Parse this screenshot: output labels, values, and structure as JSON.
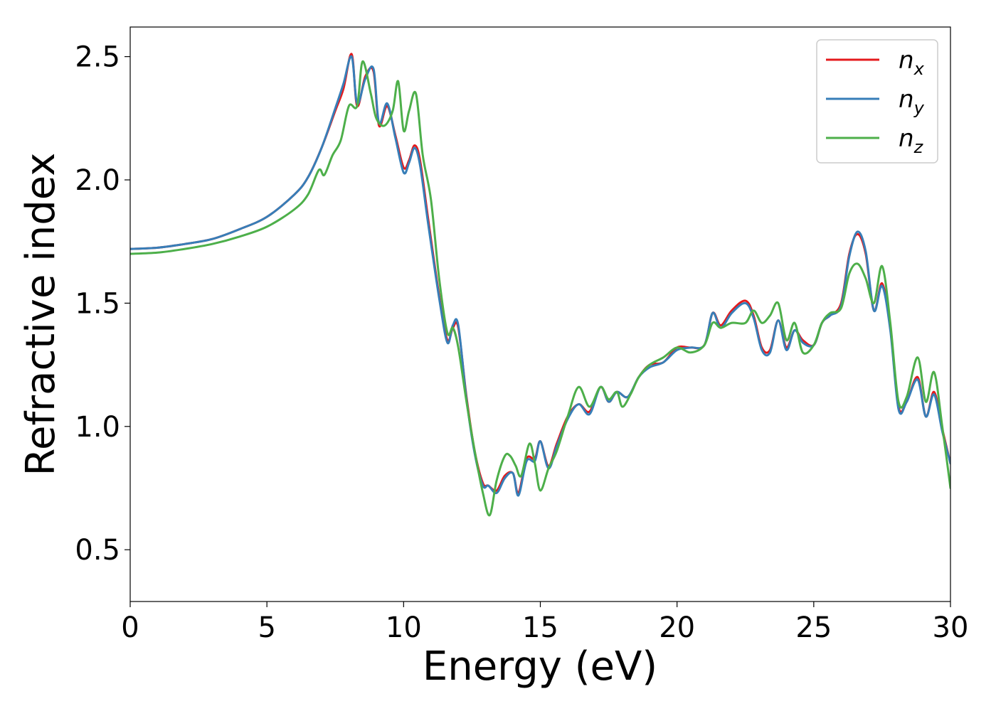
{
  "chart_data": {
    "type": "line",
    "xlabel": "Energy (eV)",
    "ylabel": "Refractive index",
    "xlim": [
      0,
      30
    ],
    "ylim": [
      0.29,
      2.62
    ],
    "xticks": [
      "0",
      "5",
      "10",
      "15",
      "20",
      "25",
      "30"
    ],
    "yticks": [
      "0.5",
      "1.0",
      "1.5",
      "2.0",
      "2.5"
    ],
    "grid": false,
    "legend_position": "top-right",
    "series": [
      {
        "name": "n",
        "subscript": "x",
        "color": "#e41a1c",
        "x": [
          0,
          1,
          2,
          3,
          4,
          5,
          6,
          6.5,
          7,
          7.5,
          7.8,
          8.1,
          8.3,
          8.6,
          8.9,
          9.1,
          9.4,
          9.7,
          10.0,
          10.2,
          10.4,
          10.6,
          10.9,
          11.3,
          11.6,
          11.8,
          12.0,
          12.3,
          12.6,
          12.9,
          13.1,
          13.4,
          13.7,
          14.0,
          14.2,
          14.5,
          14.8,
          15.0,
          15.3,
          15.6,
          16.0,
          16.4,
          16.8,
          17.2,
          17.5,
          17.8,
          18.2,
          18.6,
          19.0,
          19.5,
          20.0,
          20.5,
          21.0,
          21.3,
          21.6,
          22.0,
          22.5,
          22.8,
          23.1,
          23.4,
          23.7,
          24.0,
          24.3,
          24.6,
          25.0,
          25.3,
          25.6,
          26.0,
          26.3,
          26.6,
          26.9,
          27.2,
          27.5,
          27.8,
          28.1,
          28.4,
          28.8,
          29.1,
          29.4,
          29.7,
          30.0
        ],
        "values": [
          1.72,
          1.725,
          1.74,
          1.76,
          1.8,
          1.85,
          1.94,
          2.01,
          2.13,
          2.28,
          2.37,
          2.51,
          2.3,
          2.42,
          2.44,
          2.22,
          2.3,
          2.18,
          2.05,
          2.08,
          2.14,
          2.08,
          1.84,
          1.53,
          1.35,
          1.4,
          1.4,
          1.12,
          0.9,
          0.77,
          0.76,
          0.74,
          0.8,
          0.81,
          0.73,
          0.87,
          0.87,
          0.94,
          0.84,
          0.93,
          1.04,
          1.09,
          1.06,
          1.16,
          1.1,
          1.14,
          1.12,
          1.2,
          1.25,
          1.26,
          1.32,
          1.32,
          1.33,
          1.46,
          1.41,
          1.47,
          1.51,
          1.45,
          1.32,
          1.31,
          1.43,
          1.32,
          1.39,
          1.35,
          1.33,
          1.42,
          1.45,
          1.5,
          1.7,
          1.78,
          1.7,
          1.47,
          1.58,
          1.4,
          1.08,
          1.1,
          1.2,
          1.04,
          1.14,
          0.99,
          0.85
        ]
      },
      {
        "name": "n",
        "subscript": "y",
        "color": "#377eb8",
        "x": [
          0,
          1,
          2,
          3,
          4,
          5,
          6,
          6.5,
          7,
          7.5,
          7.8,
          8.1,
          8.3,
          8.6,
          8.9,
          9.1,
          9.4,
          9.7,
          10.0,
          10.2,
          10.4,
          10.6,
          10.9,
          11.3,
          11.6,
          11.8,
          12.0,
          12.3,
          12.6,
          12.9,
          13.1,
          13.4,
          13.7,
          14.0,
          14.2,
          14.5,
          14.8,
          15.0,
          15.3,
          15.6,
          16.0,
          16.4,
          16.8,
          17.2,
          17.5,
          17.8,
          18.2,
          18.6,
          19.0,
          19.5,
          20.0,
          20.5,
          21.0,
          21.3,
          21.6,
          22.0,
          22.5,
          22.8,
          23.1,
          23.4,
          23.7,
          24.0,
          24.3,
          24.6,
          25.0,
          25.3,
          25.6,
          26.0,
          26.3,
          26.6,
          26.9,
          27.2,
          27.5,
          27.8,
          28.1,
          28.4,
          28.8,
          29.1,
          29.4,
          29.7,
          30.0
        ],
        "values": [
          1.72,
          1.725,
          1.74,
          1.76,
          1.8,
          1.85,
          1.94,
          2.01,
          2.13,
          2.29,
          2.39,
          2.5,
          2.31,
          2.41,
          2.45,
          2.23,
          2.31,
          2.17,
          2.03,
          2.07,
          2.13,
          2.06,
          1.82,
          1.52,
          1.34,
          1.41,
          1.41,
          1.11,
          0.89,
          0.76,
          0.76,
          0.73,
          0.79,
          0.81,
          0.72,
          0.86,
          0.86,
          0.94,
          0.83,
          0.92,
          1.03,
          1.09,
          1.05,
          1.16,
          1.1,
          1.14,
          1.12,
          1.2,
          1.24,
          1.26,
          1.31,
          1.32,
          1.33,
          1.46,
          1.4,
          1.46,
          1.5,
          1.44,
          1.31,
          1.3,
          1.43,
          1.31,
          1.39,
          1.34,
          1.33,
          1.42,
          1.45,
          1.49,
          1.69,
          1.79,
          1.71,
          1.47,
          1.57,
          1.39,
          1.07,
          1.1,
          1.19,
          1.04,
          1.13,
          0.98,
          0.85
        ]
      },
      {
        "name": "n",
        "subscript": "z",
        "color": "#4daf4a",
        "x": [
          0,
          1,
          2,
          3,
          4,
          5,
          6,
          6.5,
          6.9,
          7.1,
          7.4,
          7.7,
          8.0,
          8.3,
          8.5,
          8.8,
          9.0,
          9.3,
          9.6,
          9.8,
          10.0,
          10.2,
          10.45,
          10.7,
          11.0,
          11.3,
          11.6,
          11.8,
          12.0,
          12.3,
          12.6,
          12.9,
          13.15,
          13.4,
          13.7,
          13.9,
          14.1,
          14.3,
          14.6,
          14.8,
          15.0,
          15.3,
          15.6,
          16.0,
          16.4,
          16.8,
          17.2,
          17.5,
          17.8,
          18.0,
          18.3,
          18.6,
          19.0,
          19.5,
          20.0,
          20.5,
          21.0,
          21.3,
          21.6,
          22.0,
          22.5,
          22.8,
          23.1,
          23.4,
          23.7,
          24.0,
          24.3,
          24.6,
          25.0,
          25.3,
          25.6,
          26.0,
          26.3,
          26.6,
          26.9,
          27.2,
          27.5,
          27.8,
          28.1,
          28.4,
          28.8,
          29.1,
          29.4,
          29.7,
          30.0
        ],
        "values": [
          1.7,
          1.705,
          1.72,
          1.74,
          1.77,
          1.81,
          1.88,
          1.94,
          2.04,
          2.02,
          2.1,
          2.16,
          2.3,
          2.3,
          2.48,
          2.35,
          2.25,
          2.22,
          2.28,
          2.4,
          2.2,
          2.28,
          2.35,
          2.1,
          1.92,
          1.6,
          1.38,
          1.4,
          1.32,
          1.1,
          0.9,
          0.73,
          0.64,
          0.78,
          0.88,
          0.88,
          0.84,
          0.8,
          0.93,
          0.85,
          0.74,
          0.83,
          0.9,
          1.04,
          1.16,
          1.08,
          1.16,
          1.11,
          1.14,
          1.08,
          1.13,
          1.2,
          1.25,
          1.28,
          1.32,
          1.3,
          1.33,
          1.42,
          1.4,
          1.42,
          1.42,
          1.47,
          1.42,
          1.45,
          1.5,
          1.35,
          1.42,
          1.3,
          1.33,
          1.42,
          1.46,
          1.48,
          1.62,
          1.66,
          1.6,
          1.5,
          1.65,
          1.42,
          1.1,
          1.12,
          1.28,
          1.1,
          1.22,
          1.0,
          0.75
        ]
      }
    ]
  }
}
